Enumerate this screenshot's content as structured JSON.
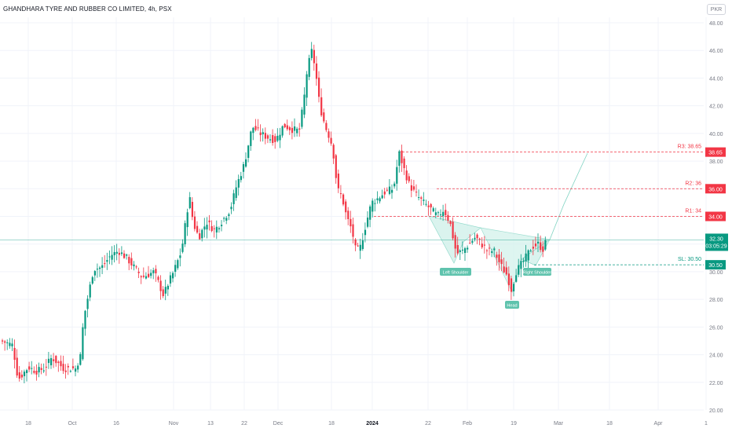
{
  "title": "GHANDHARA TYRE AND RUBBER CO LIMITED, 4h, PSX",
  "currency_button": "PKR",
  "colors": {
    "up": "#089981",
    "down": "#f23645",
    "grid": "#f0f3fa",
    "axis_text": "#787b86",
    "pattern_fill": "#d4f2ec",
    "pattern_line": "#7fd3c2"
  },
  "chart_data": {
    "type": "candlestick",
    "ylim": [
      20,
      48
    ],
    "y_ticks": [
      "20.00",
      "22.00",
      "24.00",
      "26.00",
      "28.00",
      "30.00",
      "32.00",
      "34.00",
      "36.00",
      "38.00",
      "40.00",
      "42.00",
      "44.00",
      "46.00",
      "48.00"
    ],
    "x_ticks": [
      "18",
      "Oct",
      "16",
      "Nov",
      "13",
      "22",
      "Dec",
      "18",
      "2024",
      "22",
      "Feb",
      "19",
      "Mar",
      "18",
      "Apr",
      "1"
    ],
    "last_price": {
      "label": "32.30",
      "countdown": "03:05:29",
      "value": 32.3
    },
    "levels": [
      {
        "name": "R3: 38.65",
        "tag": "38.65",
        "value": 38.65,
        "color": "#f23645"
      },
      {
        "name": "R2: 36",
        "tag": "36.00",
        "value": 36.0,
        "color": "#f23645"
      },
      {
        "name": "R1: 34",
        "tag": "34.00",
        "value": 34.0,
        "color": "#f23645"
      },
      {
        "name": "SL: 30.50",
        "tag": "30.50",
        "value": 30.5,
        "color": "#089981"
      }
    ],
    "annotations": [
      "Left Shoulder",
      "Head",
      "Right Shoulder"
    ],
    "series_path": [
      [
        0,
        25.0
      ],
      [
        15,
        24.7
      ],
      [
        22,
        22.2
      ],
      [
        35,
        23.1
      ],
      [
        45,
        22.8
      ],
      [
        55,
        23.0
      ],
      [
        65,
        23.8
      ],
      [
        80,
        23.0
      ],
      [
        95,
        23.0
      ],
      [
        102,
        24.0
      ],
      [
        105,
        26.5
      ],
      [
        112,
        28.5
      ],
      [
        118,
        30.2
      ],
      [
        128,
        30.3
      ],
      [
        140,
        31.2
      ],
      [
        150,
        31.5
      ],
      [
        160,
        31.0
      ],
      [
        170,
        30.3
      ],
      [
        180,
        29.6
      ],
      [
        195,
        30.0
      ],
      [
        207,
        28.3
      ],
      [
        212,
        29.0
      ],
      [
        220,
        30.0
      ],
      [
        230,
        31.5
      ],
      [
        240,
        35.5
      ],
      [
        245,
        33.5
      ],
      [
        252,
        32.5
      ],
      [
        262,
        33.6
      ],
      [
        272,
        33.0
      ],
      [
        282,
        33.7
      ],
      [
        292,
        34.5
      ],
      [
        300,
        36.2
      ],
      [
        310,
        37.8
      ],
      [
        320,
        40.5
      ],
      [
        330,
        40.0
      ],
      [
        340,
        39.7
      ],
      [
        350,
        39.5
      ],
      [
        360,
        40.6
      ],
      [
        370,
        40.3
      ],
      [
        380,
        40.2
      ],
      [
        386,
        42.5
      ],
      [
        390,
        44.6
      ],
      [
        396,
        46.0
      ],
      [
        400,
        44.8
      ],
      [
        406,
        42.0
      ],
      [
        413,
        40.5
      ],
      [
        420,
        39.5
      ],
      [
        425,
        38.0
      ],
      [
        428,
        36.0
      ],
      [
        434,
        35.5
      ],
      [
        440,
        34.0
      ],
      [
        447,
        33.0
      ],
      [
        452,
        31.5
      ],
      [
        458,
        31.8
      ],
      [
        465,
        33.5
      ],
      [
        472,
        35.0
      ],
      [
        480,
        35.3
      ],
      [
        490,
        35.8
      ],
      [
        500,
        36.0
      ],
      [
        507,
        38.6
      ],
      [
        514,
        37.3
      ],
      [
        520,
        36.3
      ],
      [
        528,
        35.6
      ],
      [
        538,
        35.0
      ],
      [
        548,
        34.5
      ],
      [
        556,
        34.0
      ],
      [
        564,
        34.5
      ],
      [
        572,
        33.5
      ],
      [
        580,
        31.3
      ],
      [
        588,
        31.5
      ],
      [
        596,
        32.0
      ],
      [
        604,
        32.5
      ],
      [
        612,
        32.0
      ],
      [
        620,
        31.5
      ],
      [
        628,
        31.5
      ],
      [
        636,
        30.5
      ],
      [
        644,
        29.8
      ],
      [
        650,
        28.7
      ],
      [
        656,
        30.0
      ],
      [
        662,
        30.5
      ],
      [
        668,
        31.0
      ],
      [
        676,
        31.8
      ],
      [
        684,
        32.0
      ],
      [
        690,
        31.6
      ],
      [
        695,
        32.3
      ]
    ]
  }
}
